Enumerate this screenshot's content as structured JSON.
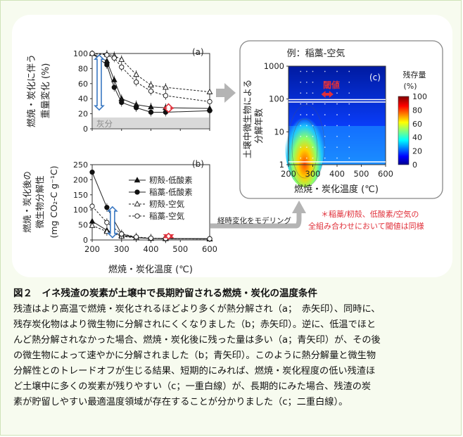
{
  "chart_data": [
    {
      "id": "a",
      "type": "line",
      "panel_label": "(a)",
      "ylabel_lines": [
        "燃焼・炭化に伴う",
        "重量変化 (%)"
      ],
      "ylim": [
        0,
        100
      ],
      "yticks": [
        "0",
        "20",
        "40",
        "60",
        "80",
        "100"
      ],
      "xlim": [
        200,
        600
      ],
      "x": [
        200,
        250,
        275,
        300,
        350,
        400,
        450,
        600
      ],
      "series": [
        {
          "name": "籾殻-低酸素",
          "marker": "triangle-filled",
          "dash": false,
          "values": [
            100,
            90,
            65,
            40,
            32,
            29,
            28,
            27
          ]
        },
        {
          "name": "稲藁-低酸素",
          "marker": "circle-filled",
          "dash": false,
          "values": [
            100,
            85,
            55,
            35,
            28,
            22,
            22,
            24
          ]
        },
        {
          "name": "籾殻-空気",
          "marker": "triangle-open",
          "dash": true,
          "values": [
            100,
            99,
            97,
            92,
            72,
            58,
            55,
            49
          ]
        },
        {
          "name": "稲藁-空気",
          "marker": "circle-open",
          "dash": true,
          "values": [
            100,
            98,
            94,
            82,
            62,
            50,
            44,
            36
          ]
        }
      ],
      "ash_label": "灰分",
      "ash_level": 15,
      "blue_arrow_range": [
        25,
        98
      ],
      "red_arrow_range": [
        22,
        33
      ]
    },
    {
      "id": "b",
      "type": "line",
      "panel_label": "(b)",
      "ylabel_lines": [
        "燃焼・炭化後の",
        "微生物分解性",
        "(mg CO₂-C g⁻¹C)"
      ],
      "ylim": [
        0,
        250
      ],
      "yticks": [
        "0",
        "50",
        "100",
        "150",
        "200",
        "250"
      ],
      "xlim": [
        200,
        600
      ],
      "xticks": [
        "200",
        "300",
        "400",
        "500",
        "600"
      ],
      "xlabel": "燃焼・炭化温度 (℃)",
      "x": [
        200,
        250,
        300,
        350,
        400,
        450,
        600
      ],
      "series": [
        {
          "name": "籾殻-低酸素",
          "marker": "triangle-filled",
          "dash": false,
          "values": [
            62,
            32,
            15,
            8,
            5,
            5,
            4
          ]
        },
        {
          "name": "稲藁-低酸素",
          "marker": "circle-filled",
          "dash": false,
          "values": [
            225,
            108,
            20,
            8,
            5,
            4,
            4
          ]
        },
        {
          "name": "籾殻-空気",
          "marker": "triangle-open",
          "dash": true,
          "values": [
            48,
            28,
            12,
            7,
            5,
            4,
            3
          ]
        },
        {
          "name": "稲藁-空気",
          "marker": "circle-open",
          "dash": true,
          "values": [
            112,
            58,
            20,
            10,
            6,
            5,
            4
          ]
        }
      ],
      "blue_arrow_range": [
        8,
        110
      ],
      "red_arrow_range": [
        3,
        22
      ]
    },
    {
      "id": "c",
      "type": "heatmap",
      "title": "例：稲藁-空気",
      "panel_label": "(c)",
      "ylabel_lines": [
        "土壌中微生物による",
        "分解年数"
      ],
      "yscale": "log",
      "ylim": [
        1,
        1000
      ],
      "yticks": [
        "1",
        "10",
        "100",
        "1000"
      ],
      "xlim": [
        200,
        600
      ],
      "xticks": [
        "200",
        "300",
        "400",
        "500",
        "600"
      ],
      "xlabel": "燃焼・炭化温度 (℃)",
      "colorbar_title_lines": [
        "残存量",
        "(%)"
      ],
      "colorbar_ticks": [
        "0",
        "20",
        "40",
        "60",
        "80",
        "100"
      ],
      "threshold_label": "閾値",
      "threshold_x_range": [
        335,
        385
      ],
      "peak_x": 275
    }
  ],
  "arrow_label": "経時変化をモデリング",
  "note_lines": [
    "＊稲藁/籾殻、低酸素/空気の",
    "全組み合わせにおいて閾値は同様"
  ],
  "caption": {
    "title": "図２　イネ残渣の炭素が土壌中で長期貯留される燃焼・炭化の温度条件",
    "lines": [
      "残渣はより高温で燃焼・炭化されるほどより多くが熱分解され（a；　赤矢印）、同時に、",
      "残存炭化物はより微生物に分解されにくくなりました（b；赤矢印）。逆に、低温でほと",
      "んど熱分解されなかった場合、燃焼・炭化後に残った量は多い（a；青矢印）が、その後",
      "の微生物によって速やかに分解されました（b；青矢印）。このように熱分解量と微生物",
      "分解性とのトレードオフが生じる結果、短期的にみれば、燃焼・炭化程度の低い残渣ほ",
      "ど土壌中に多くの炭素が残りやすい（c；一重白線）が、長期的にみた場合、残渣の炭",
      "素が貯留しやすい最適温度領域が存在することが分かりました（c；二重白線）。"
    ]
  },
  "colors": {
    "frame_bg": "#f7fbef",
    "blue_arrow": "#3a78c2",
    "red_arrow": "#e0303a",
    "note_red": "#e0303a",
    "gray_arrow": "#b4b4b4",
    "ash_band": "#d9d9d9"
  }
}
